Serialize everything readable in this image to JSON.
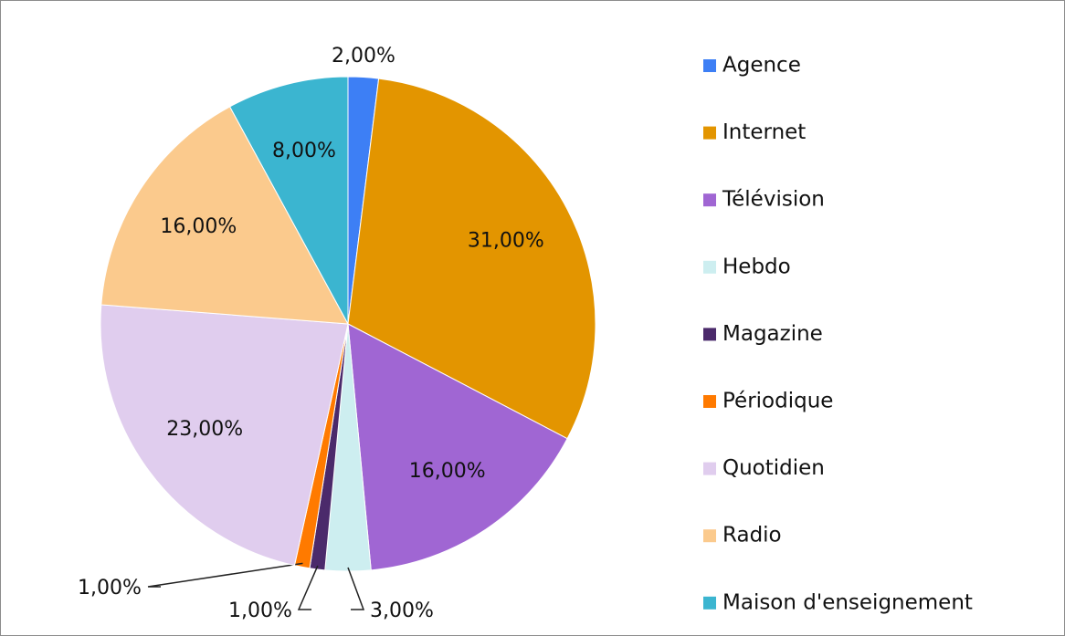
{
  "chart_data": {
    "type": "pie",
    "categories": [
      "Agence",
      "Internet",
      "Télévision",
      "Hebdo",
      "Magazine",
      "Périodique",
      "Quotidien",
      "Radio",
      "Maison d'enseignement"
    ],
    "values": [
      2,
      31,
      16,
      3,
      1,
      1,
      23,
      16,
      8
    ],
    "value_labels": [
      "2,00%",
      "31,00%",
      "16,00%",
      "3,00%",
      "1,00%",
      "1,00%",
      "23,00%",
      "16,00%",
      "8,00%"
    ],
    "colors": [
      "#3d7ff5",
      "#e39500",
      "#a066d3",
      "#cdeef0",
      "#4b2a6b",
      "#ff7a00",
      "#e0cdee",
      "#fbca8d",
      "#3bb5d0"
    ],
    "legend": "right"
  }
}
